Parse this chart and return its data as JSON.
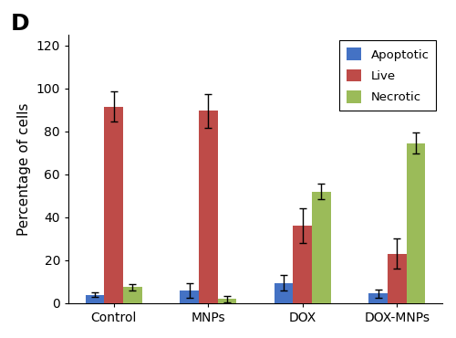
{
  "categories": [
    "Control",
    "MNPs",
    "DOX",
    "DOX-MNPs"
  ],
  "series": {
    "Apoptotic": {
      "values": [
        4.0,
        6.0,
        9.5,
        4.5
      ],
      "errors": [
        1.0,
        3.5,
        3.5,
        2.0
      ],
      "color": "#4472C4"
    },
    "Live": {
      "values": [
        91.5,
        89.5,
        36.0,
        23.0
      ],
      "errors": [
        7.0,
        8.0,
        8.0,
        7.0
      ],
      "color": "#BE4B48"
    },
    "Necrotic": {
      "values": [
        7.5,
        2.0,
        52.0,
        74.5
      ],
      "errors": [
        1.5,
        1.5,
        3.5,
        5.0
      ],
      "color": "#9BBB59"
    }
  },
  "ylabel": "Percentage of cells",
  "ylim": [
    0,
    125
  ],
  "yticks": [
    0,
    20,
    40,
    60,
    80,
    100,
    120
  ],
  "panel_label": "D",
  "bar_width": 0.2,
  "legend_fontsize": 9.5,
  "axis_fontsize": 11,
  "tick_fontsize": 10,
  "panel_label_fontsize": 18
}
